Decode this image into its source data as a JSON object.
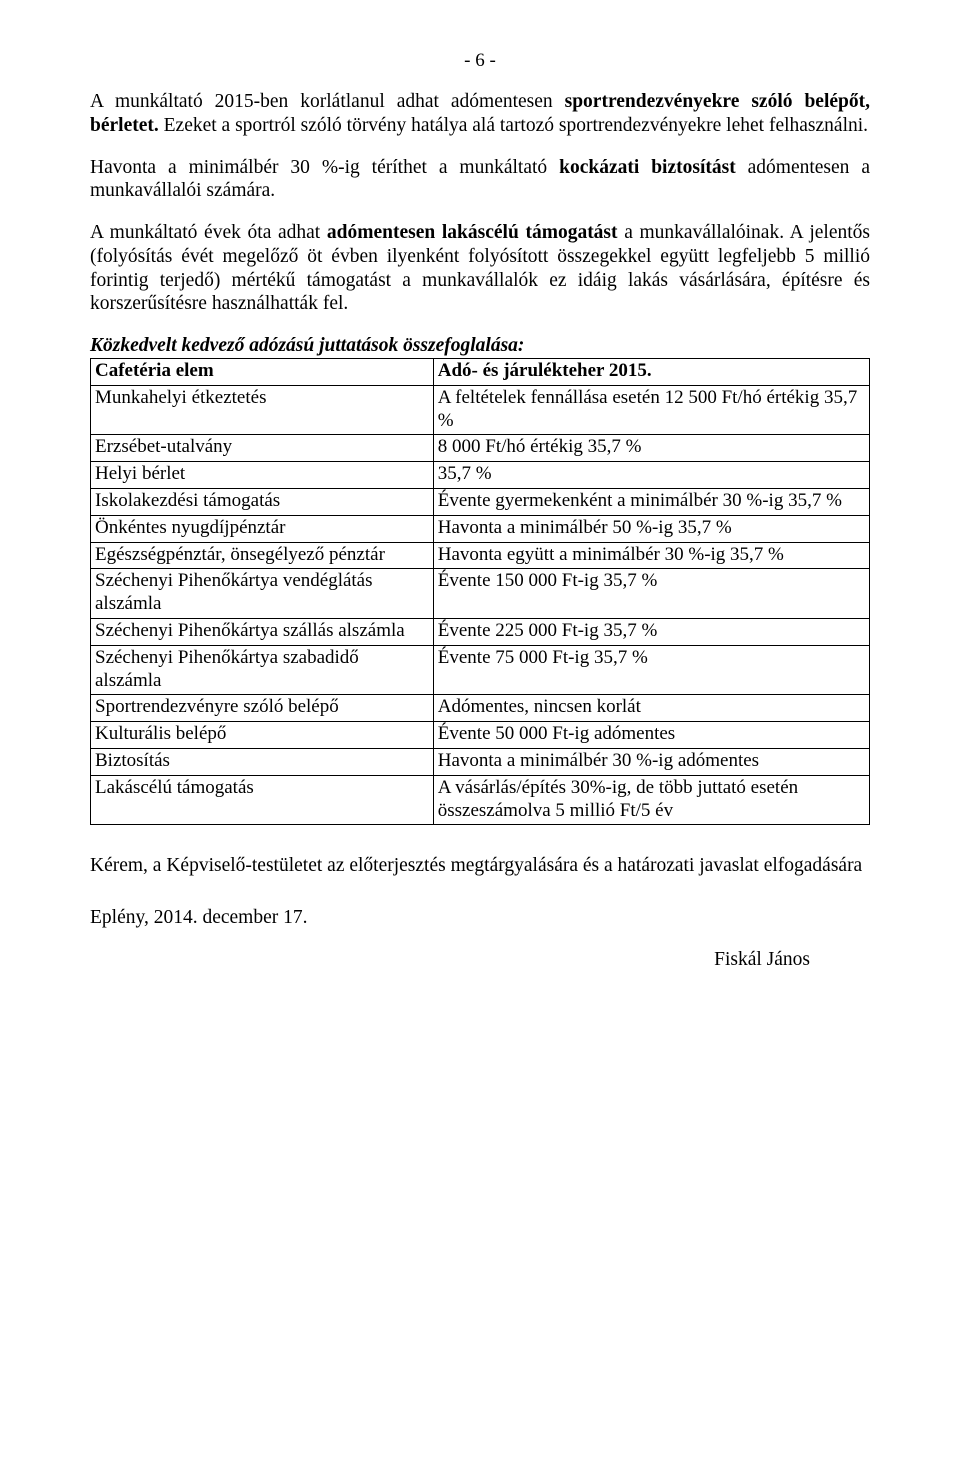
{
  "pageNumber": "- 6 -",
  "paragraphs": {
    "p1": {
      "t1": "A munkáltató 2015-ben korlátlanul adhat adómentesen ",
      "b1": "sportrendezvényekre szóló belépőt, bérletet.",
      "t2": " Ezeket a sportról szóló törvény hatálya alá tartozó sportrendezvényekre lehet felhasználni."
    },
    "p2": {
      "t1": "Havonta a minimálbér 30 %-ig téríthet a munkáltató ",
      "b1": "kockázati biztosítást",
      "t2": " adómentesen a munkavállalói számára."
    },
    "p3": {
      "t1": "A munkáltató évek óta adhat ",
      "b1": "adómentesen lakáscélú támogatást",
      "t2": " a munkavállalóinak. A jelentős (folyósítás évét megelőző öt évben ilyenként folyósított összegekkel együtt legfeljebb 5 millió forintig terjedő) mértékű támogatást a munkavállalók ez idáig lakás vásárlására, építésre és korszerűsítésre használhatták fel."
    }
  },
  "summaryTitle": "Közkedvelt kedvező adózású juttatások összefoglalása:",
  "table": {
    "header": {
      "c1": "Cafetéria elem",
      "c2": "Adó- és járulékteher 2015."
    },
    "rows": [
      {
        "c1": "Munkahelyi étkeztetés",
        "c2": "A feltételek fennállása esetén 12 500 Ft/hó értékig 35,7 %"
      },
      {
        "c1": "Erzsébet-utalvány",
        "c2": "8 000 Ft/hó értékig 35,7 %"
      },
      {
        "c1": "Helyi bérlet",
        "c2": "35,7 %"
      },
      {
        "c1": "Iskolakezdési támogatás",
        "c2": "Évente gyermekenként a minimálbér 30 %-ig 35,7 %"
      },
      {
        "c1": "Önkéntes nyugdíjpénztár",
        "c2": "Havonta a minimálbér 50 %-ig 35,7 %"
      },
      {
        "c1": "Egészségpénztár, önsegélyező pénztár",
        "c2": "Havonta együtt a minimálbér 30 %-ig 35,7 %"
      },
      {
        "c1": "Széchenyi Pihenőkártya vendéglátás alszámla",
        "c2": "Évente 150 000 Ft-ig 35,7 %"
      },
      {
        "c1": "Széchenyi Pihenőkártya szállás alszámla",
        "c2": "Évente 225 000 Ft-ig 35,7 %"
      },
      {
        "c1": "Széchenyi Pihenőkártya szabadidő alszámla",
        "c2": "Évente 75 000 Ft-ig 35,7 %"
      },
      {
        "c1": "Sportrendezvényre szóló belépő",
        "c2": "Adómentes, nincsen korlát"
      },
      {
        "c1": "Kulturális belépő",
        "c2": "Évente 50 000 Ft-ig adómentes"
      },
      {
        "c1": "Biztosítás",
        "c2": "Havonta a minimálbér 30 %-ig adómentes"
      },
      {
        "c1": "Lakáscélú támogatás",
        "c2": "A vásárlás/építés 30%-ig, de több juttató esetén összeszámolva 5 millió Ft/5 év"
      }
    ]
  },
  "closing": "Kérem, a Képviselő-testületet az előterjesztés megtárgyalására és a határozati javaslat elfogadására",
  "dateplace": "Eplény, 2014. december 17.",
  "signature": "Fiskál János"
}
